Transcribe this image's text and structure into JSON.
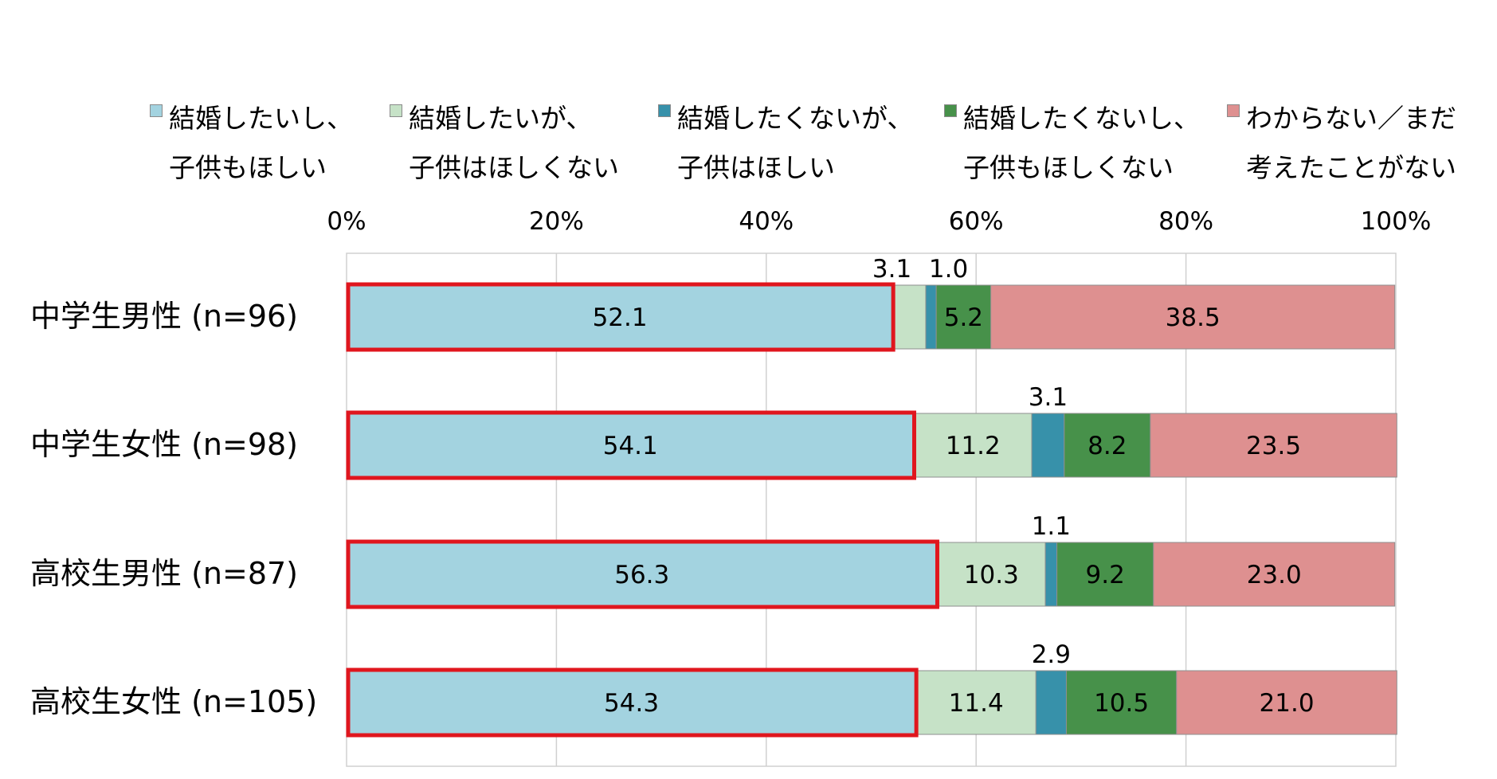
{
  "chart_data": {
    "type": "bar",
    "orientation": "horizontal",
    "stacked": true,
    "percent": true,
    "categories": [
      "中学生男性 (n=96)",
      "中学生女性 (n=98)",
      "高校生男性 (n=87)",
      "高校生女性 (n=105)"
    ],
    "series": [
      {
        "name": "結婚したいし、子供もほしい",
        "name_lines": [
          "結婚したいし、",
          "子供もほしい"
        ],
        "color": "#a3d3e0",
        "values": [
          52.1,
          54.1,
          56.3,
          54.3
        ],
        "labels": [
          "52.1",
          "54.1",
          "56.3",
          "54.3"
        ]
      },
      {
        "name": "結婚したいが、子供はほしくない",
        "name_lines": [
          "結婚したいが、",
          "子供はほしくない"
        ],
        "color": "#c6e2c7",
        "values": [
          3.1,
          11.2,
          10.3,
          11.4
        ],
        "labels": [
          "3.1",
          "11.2",
          "10.3",
          "11.4"
        ]
      },
      {
        "name": "結婚したくないが、子供はほしい",
        "name_lines": [
          "結婚したくないが、",
          "子供はほしい"
        ],
        "color": "#3791aa",
        "values": [
          1.0,
          3.1,
          1.1,
          2.9
        ],
        "labels": [
          "1.0",
          "3.1",
          "1.1",
          "2.9"
        ]
      },
      {
        "name": "結婚したくないし、子供もほしくない",
        "name_lines": [
          "結婚したくないし、",
          "子供もほしくない"
        ],
        "color": "#47914a",
        "values": [
          5.2,
          8.2,
          9.2,
          10.5
        ],
        "labels": [
          "5.2",
          "8.2",
          "9.2",
          "10.5"
        ]
      },
      {
        "name": "わからない／まだ考えたことがない",
        "name_lines": [
          "わからない／まだ",
          "考えたことがない"
        ],
        "color": "#de9090",
        "values": [
          38.5,
          23.5,
          23.0,
          21.0
        ],
        "labels": [
          "38.5",
          "23.5",
          "23.0",
          "21.0"
        ]
      }
    ],
    "x_ticks": [
      "0%",
      "20%",
      "40%",
      "60%",
      "80%",
      "100%"
    ],
    "xlim": [
      0,
      100
    ],
    "grid": true,
    "legend_position": "top",
    "highlight_series": 0,
    "highlight_color": "#e0161e"
  }
}
